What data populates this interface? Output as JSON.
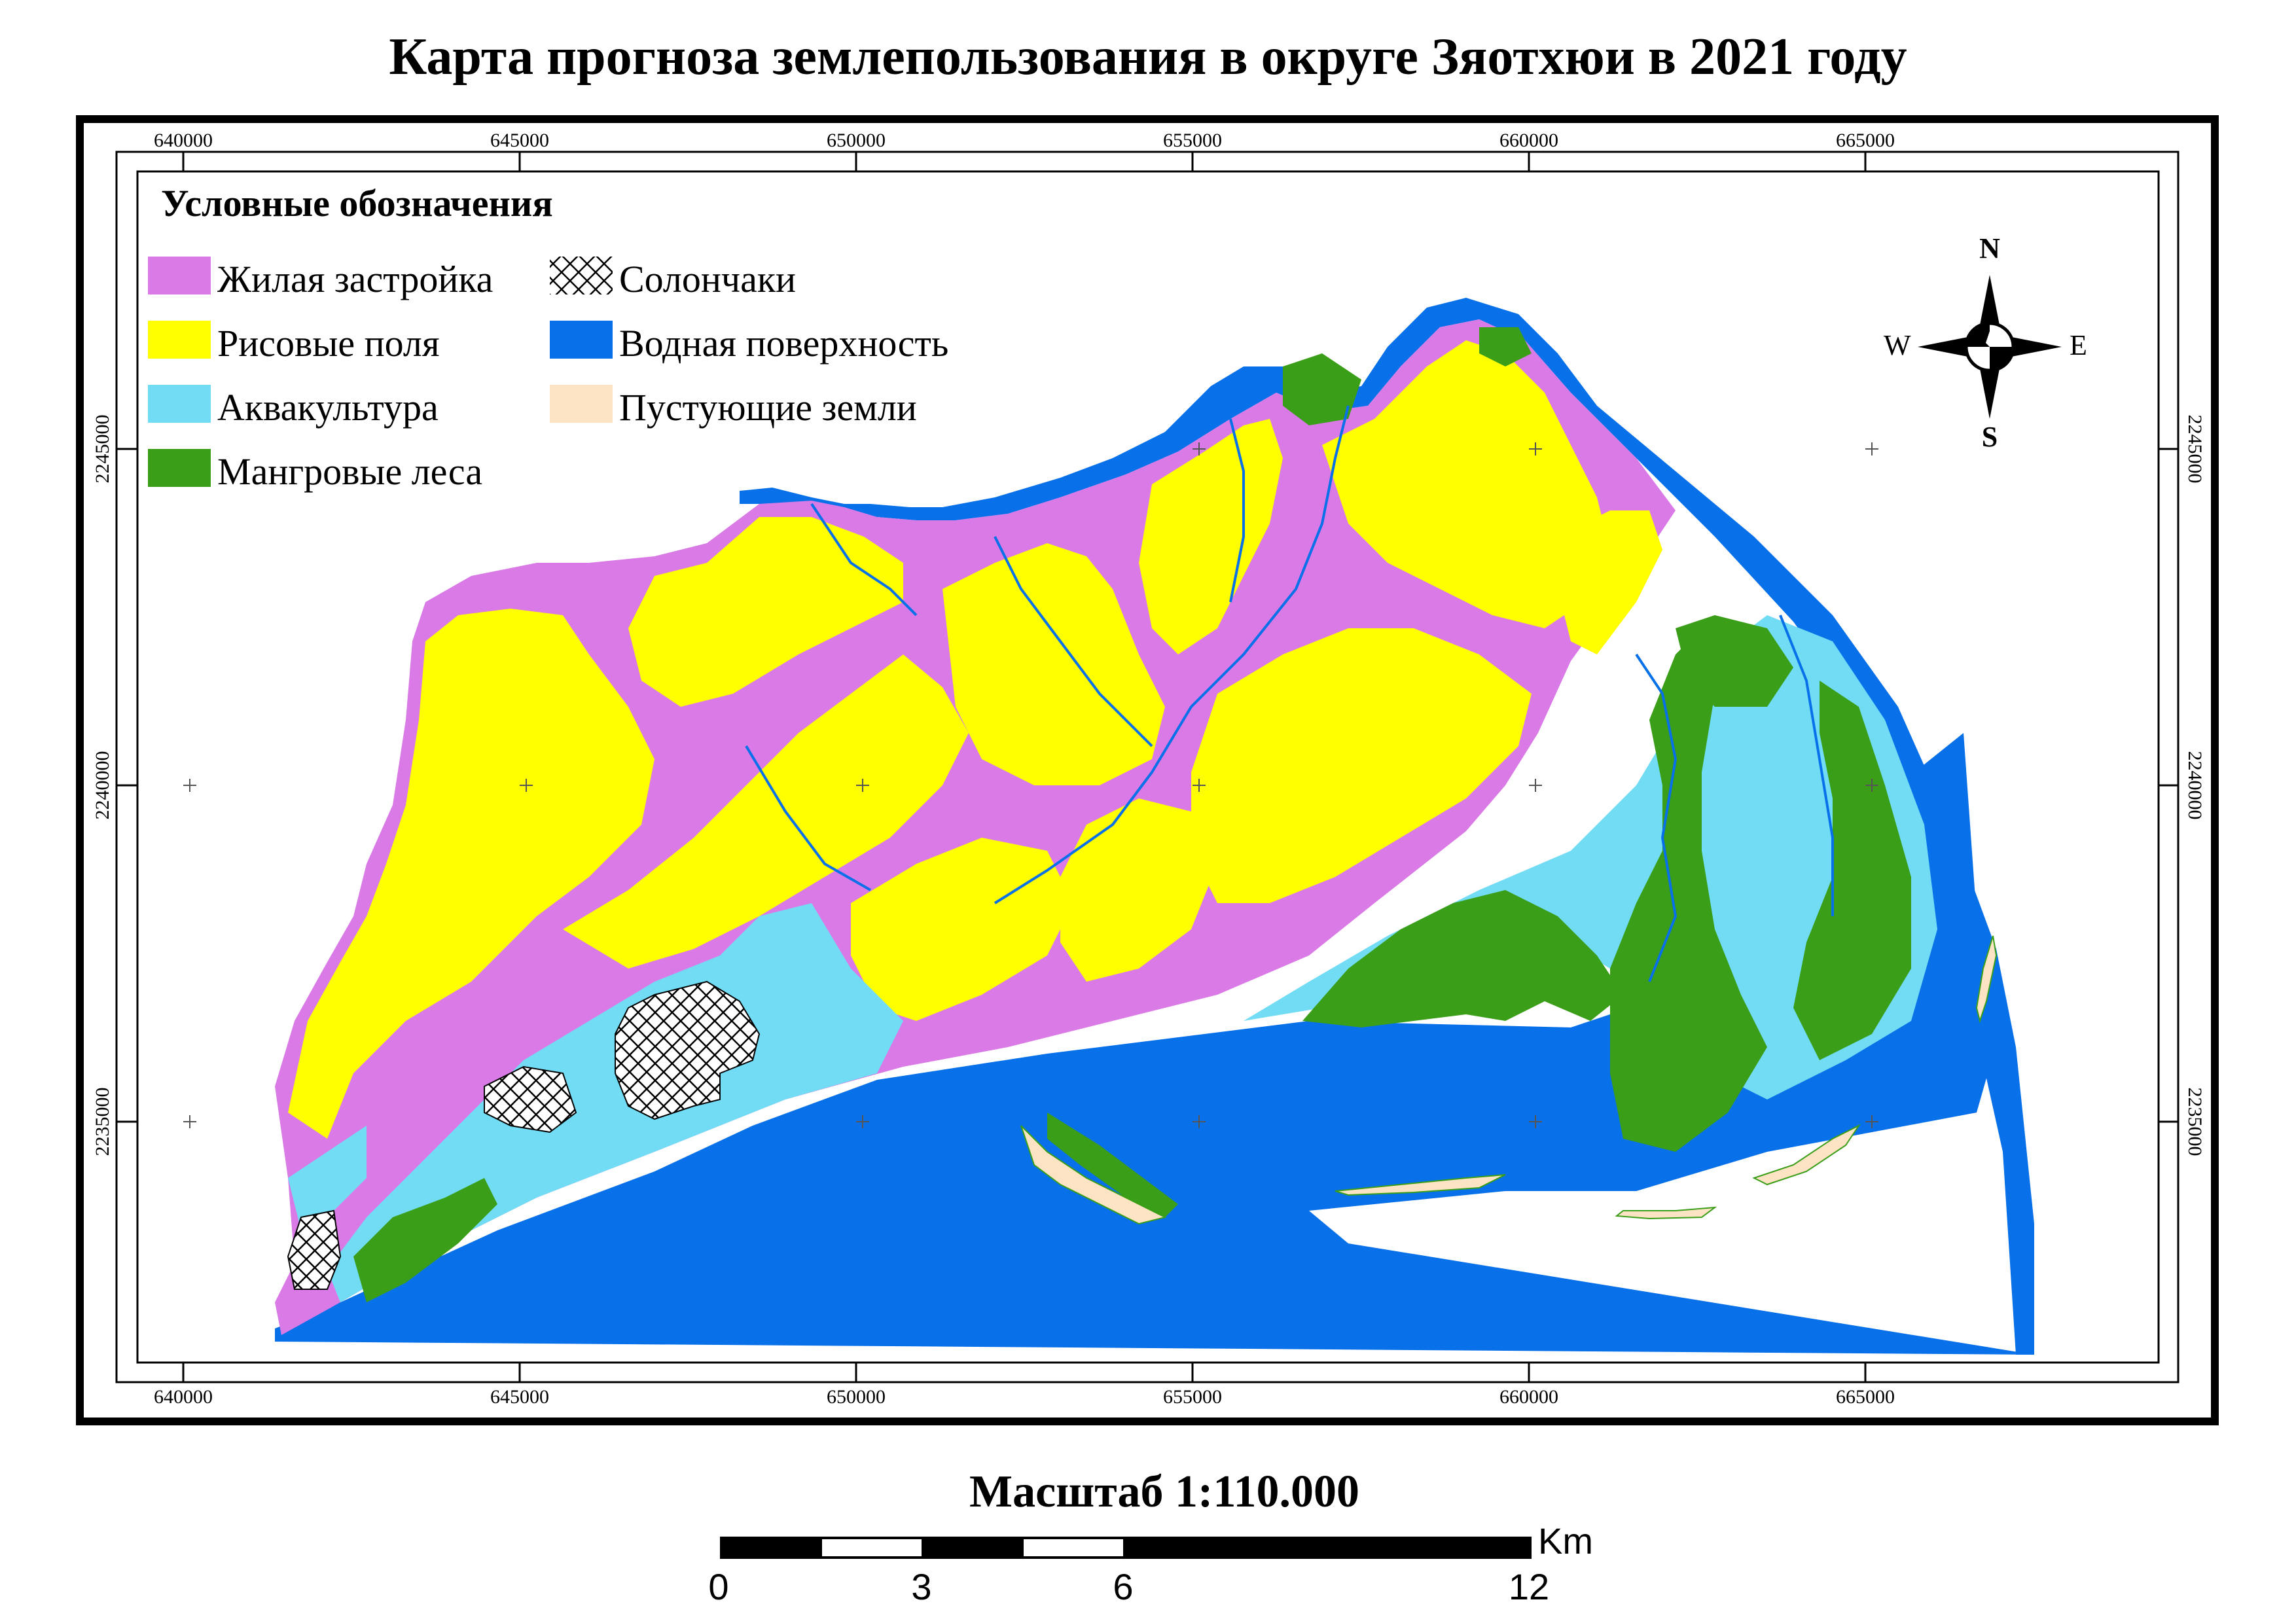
{
  "title": "Карта прогноза землепользования в округе Зяотхюи в 2021 году",
  "legend": {
    "title": "Условные обозначения",
    "items": [
      {
        "label": "Жилая застройка",
        "color": "#d97ae6",
        "pattern": "solid"
      },
      {
        "label": "Солончаки",
        "color": "#ffffff",
        "pattern": "crosshatch"
      },
      {
        "label": "Рисовые поля",
        "color": "#ffff00",
        "pattern": "solid"
      },
      {
        "label": "Водная поверхность",
        "color": "#0870e8",
        "pattern": "solid"
      },
      {
        "label": "Аквакультура",
        "color": "#72dcf5",
        "pattern": "solid"
      },
      {
        "label": "Пустующие земли",
        "color": "#fbe3c3",
        "pattern": "solid"
      },
      {
        "label": "Мангровые леса",
        "color": "#3a9e18",
        "pattern": "solid"
      }
    ]
  },
  "compass": {
    "n": "N",
    "s": "S",
    "e": "E",
    "w": "W"
  },
  "grid": {
    "x_ticks": [
      "640000",
      "645000",
      "650000",
      "655000",
      "660000",
      "665000"
    ],
    "y_ticks": [
      "2245000",
      "2240000",
      "2235000"
    ]
  },
  "scale": {
    "title": "Масштаб  1:110.000",
    "labels": [
      "0",
      "3",
      "6",
      "12"
    ],
    "unit": "Km"
  },
  "colors": {
    "water": "#0870e8",
    "residential": "#d97ae6",
    "rice": "#ffff00",
    "aquaculture": "#72dcf5",
    "mangrove": "#3a9e18",
    "vacant": "#fbe3c3"
  }
}
